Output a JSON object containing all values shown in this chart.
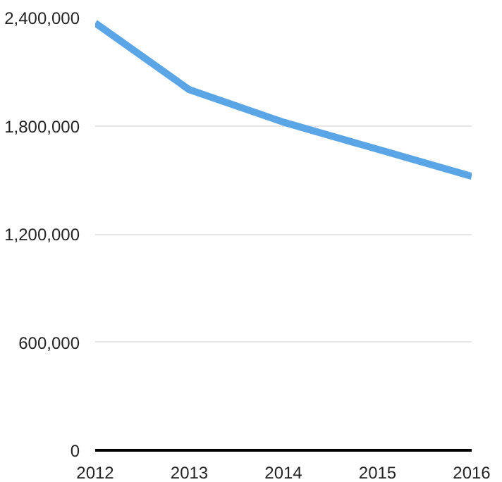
{
  "chart_data": {
    "type": "line",
    "x": [
      2012,
      2013,
      2014,
      2015,
      2016
    ],
    "series": [
      {
        "color": "#5aa5e6",
        "values": [
          2370000,
          2000000,
          1820000,
          1670000,
          1520000
        ]
      }
    ],
    "xlim": [
      2012,
      2016
    ],
    "xticks": [
      2012,
      2013,
      2014,
      2015,
      2016
    ],
    "ylim": [
      0,
      2400000
    ],
    "yticks": [
      {
        "value": 0,
        "label": "0"
      },
      {
        "value": 600000,
        "label": "600,000"
      },
      {
        "value": 1200000,
        "label": "1,200,000"
      },
      {
        "value": 1800000,
        "label": "1,800,000"
      },
      {
        "value": 2400000,
        "label": "2,400,000"
      }
    ],
    "grid": "y",
    "marker": "none",
    "line_style": "solid"
  }
}
